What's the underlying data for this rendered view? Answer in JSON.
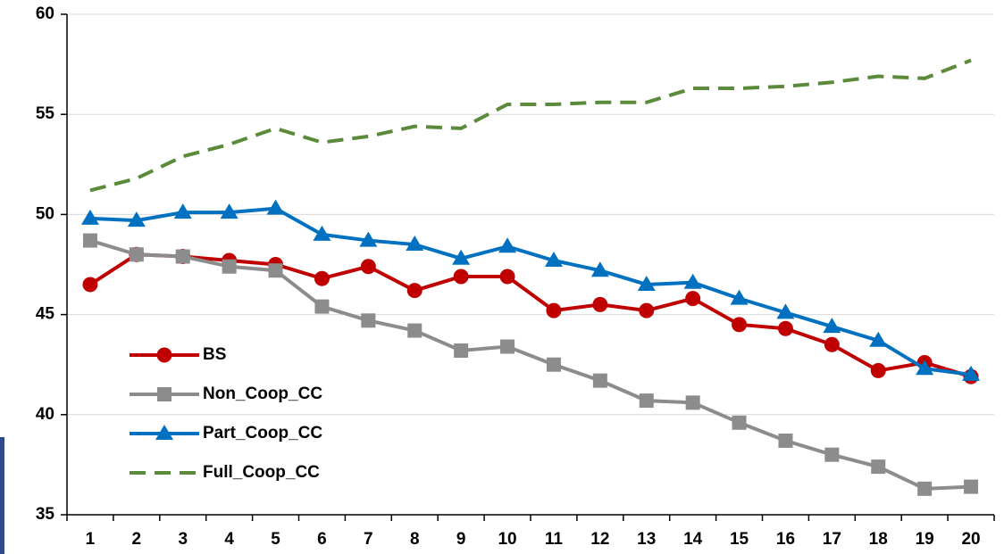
{
  "chart_data": {
    "type": "line",
    "categories": [
      "1",
      "2",
      "3",
      "4",
      "5",
      "6",
      "7",
      "8",
      "9",
      "10",
      "11",
      "12",
      "13",
      "14",
      "15",
      "16",
      "17",
      "18",
      "19",
      "20"
    ],
    "series": [
      {
        "name": "BS",
        "color": "#c00000",
        "marker": "circle",
        "dash": false,
        "values": [
          46.5,
          48.0,
          47.9,
          47.7,
          47.5,
          46.8,
          47.4,
          46.2,
          46.9,
          46.9,
          45.2,
          45.5,
          45.2,
          45.8,
          44.5,
          44.3,
          43.5,
          42.2,
          42.6,
          41.9
        ]
      },
      {
        "name": "Non_Coop_CC",
        "color": "#8c8c8c",
        "marker": "square",
        "dash": false,
        "values": [
          48.7,
          48.0,
          47.9,
          47.4,
          47.2,
          45.4,
          44.7,
          44.2,
          43.2,
          43.4,
          42.5,
          41.7,
          40.7,
          40.6,
          39.6,
          38.7,
          38.0,
          37.4,
          36.3,
          36.4
        ]
      },
      {
        "name": "Part_Coop_CC",
        "color": "#0070c0",
        "marker": "triangle",
        "dash": false,
        "values": [
          49.8,
          49.7,
          50.1,
          50.1,
          50.3,
          49.0,
          48.7,
          48.5,
          47.8,
          48.4,
          47.7,
          47.2,
          46.5,
          46.6,
          45.8,
          45.1,
          44.4,
          43.7,
          42.3,
          42.0
        ]
      },
      {
        "name": "Full_Coop_CC",
        "color": "#5a8a3a",
        "marker": "none",
        "dash": true,
        "values": [
          51.2,
          51.8,
          52.9,
          53.5,
          54.3,
          53.6,
          53.9,
          54.4,
          54.3,
          55.5,
          55.5,
          55.6,
          55.6,
          56.3,
          56.3,
          56.4,
          56.6,
          56.9,
          56.8,
          57.7
        ]
      }
    ],
    "ylim": [
      35,
      60
    ],
    "yticks": [
      35,
      40,
      45,
      50,
      55,
      60
    ],
    "grid": true,
    "legend": "lower left"
  }
}
